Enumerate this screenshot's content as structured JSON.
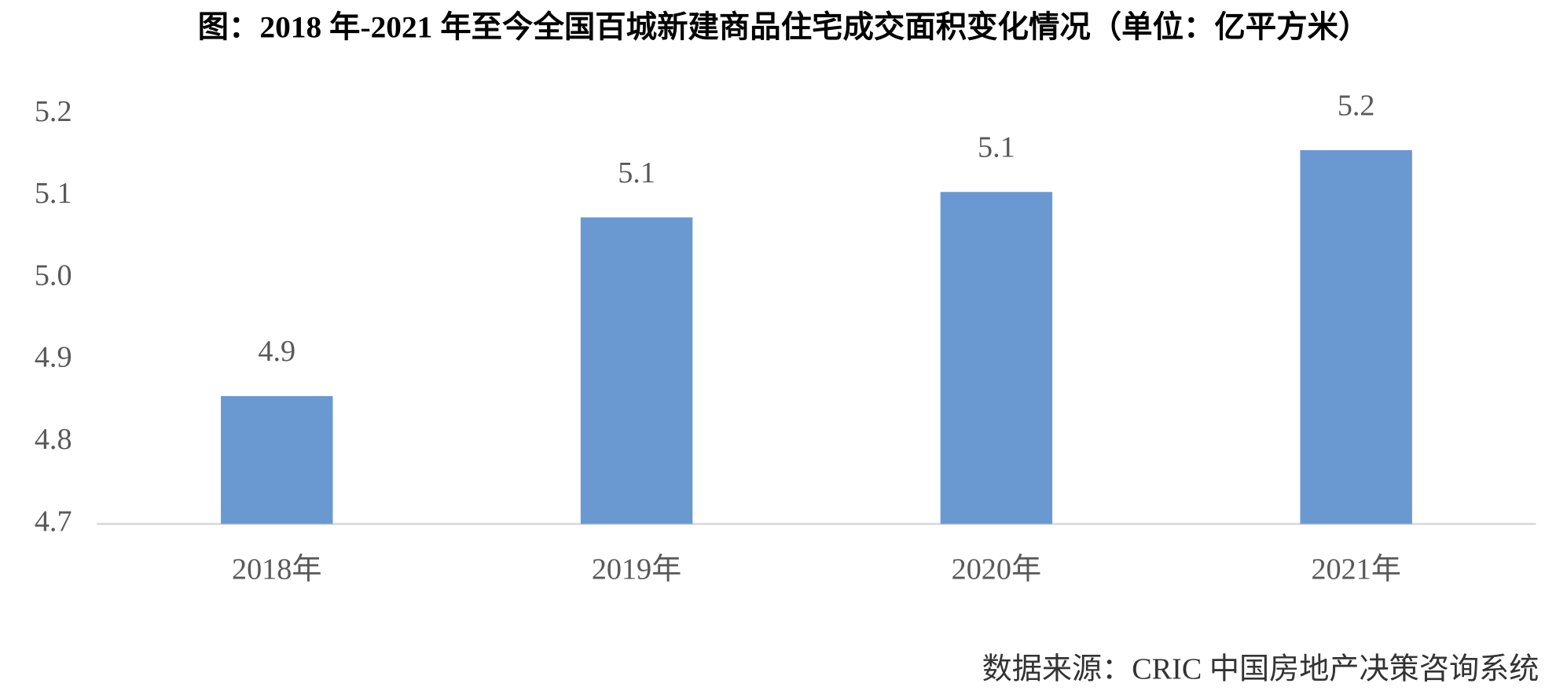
{
  "chart_data": {
    "type": "bar",
    "title": "图：2018 年-2021 年至今全国百城新建商品住宅成交面积变化情况（单位：亿平方米）",
    "categories": [
      "2018年",
      "2019年",
      "2020年",
      "2021年"
    ],
    "values": [
      4.856,
      5.074,
      5.105,
      5.156
    ],
    "value_labels": [
      "4.9",
      "5.1",
      "5.1",
      "5.2"
    ],
    "color": "#6a99d1",
    "ylim": [
      4.7,
      5.23
    ],
    "yticks": [
      4.7,
      4.8,
      4.9,
      {
        "value": 5,
        "label": "5.0"
      },
      5.1,
      5.2
    ],
    "grid": false,
    "source": "数据来源：CRIC 中国房地产决策咨询系统"
  }
}
